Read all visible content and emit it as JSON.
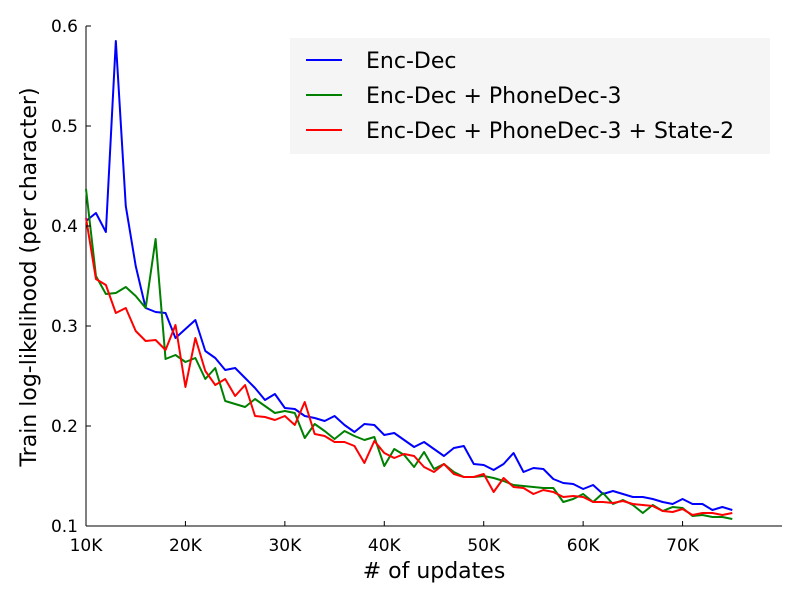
{
  "chart_data": {
    "type": "line",
    "xlabel": "# of updates",
    "ylabel": "Train log-likelihood (per character)",
    "xlim": [
      10000,
      80000
    ],
    "ylim": [
      0.1,
      0.6
    ],
    "x_ticks": [
      {
        "value": 10000,
        "label": "10K"
      },
      {
        "value": 20000,
        "label": "20K"
      },
      {
        "value": 30000,
        "label": "30K"
      },
      {
        "value": 40000,
        "label": "40K"
      },
      {
        "value": 50000,
        "label": "50K"
      },
      {
        "value": 60000,
        "label": "60K"
      },
      {
        "value": 70000,
        "label": "70K"
      }
    ],
    "y_ticks": [
      {
        "value": 0.1,
        "label": "0.1"
      },
      {
        "value": 0.2,
        "label": "0.2"
      },
      {
        "value": 0.3,
        "label": "0.3"
      },
      {
        "value": 0.4,
        "label": "0.4"
      },
      {
        "value": 0.5,
        "label": "0.5"
      },
      {
        "value": 0.6,
        "label": "0.6"
      }
    ],
    "grid": false,
    "legend_position": "top-right",
    "x": [
      10000,
      11000,
      12000,
      13000,
      14000,
      15000,
      16000,
      17000,
      18000,
      19000,
      20000,
      21000,
      22000,
      23000,
      24000,
      25000,
      26000,
      27000,
      28000,
      29000,
      30000,
      31000,
      32000,
      33000,
      34000,
      35000,
      36000,
      37000,
      38000,
      39000,
      40000,
      41000,
      42000,
      43000,
      44000,
      45000,
      46000,
      47000,
      48000,
      49000,
      50000,
      51000,
      52000,
      53000,
      54000,
      55000,
      56000,
      57000,
      58000,
      59000,
      60000,
      61000,
      62000,
      63000,
      64000,
      65000,
      66000,
      67000,
      68000,
      69000,
      70000,
      71000,
      72000,
      73000,
      74000,
      75000
    ],
    "series": [
      {
        "name": "Enc-Dec",
        "color": "#0000ff",
        "values": [
          0.405,
          0.413,
          0.394,
          0.585,
          0.42,
          0.36,
          0.318,
          0.314,
          0.313,
          0.288,
          0.297,
          0.306,
          0.275,
          0.268,
          0.256,
          0.258,
          0.248,
          0.238,
          0.226,
          0.232,
          0.218,
          0.217,
          0.21,
          0.208,
          0.205,
          0.21,
          0.201,
          0.194,
          0.202,
          0.201,
          0.191,
          0.193,
          0.186,
          0.179,
          0.184,
          0.177,
          0.17,
          0.178,
          0.18,
          0.162,
          0.161,
          0.156,
          0.162,
          0.173,
          0.154,
          0.158,
          0.157,
          0.147,
          0.143,
          0.142,
          0.137,
          0.141,
          0.132,
          0.135,
          0.132,
          0.129,
          0.129,
          0.127,
          0.124,
          0.122,
          0.127,
          0.122,
          0.122,
          0.116,
          0.119,
          0.116
        ]
      },
      {
        "name": "Enc-Dec + PhoneDec-3",
        "color": "#008000",
        "values": [
          0.437,
          0.35,
          0.332,
          0.333,
          0.339,
          0.33,
          0.318,
          0.387,
          0.267,
          0.271,
          0.264,
          0.268,
          0.247,
          0.258,
          0.225,
          0.222,
          0.219,
          0.227,
          0.22,
          0.213,
          0.215,
          0.213,
          0.188,
          0.202,
          0.195,
          0.187,
          0.195,
          0.19,
          0.186,
          0.189,
          0.16,
          0.177,
          0.171,
          0.159,
          0.174,
          0.157,
          0.162,
          0.154,
          0.149,
          0.149,
          0.15,
          0.148,
          0.145,
          0.141,
          0.14,
          0.139,
          0.138,
          0.138,
          0.124,
          0.127,
          0.132,
          0.124,
          0.133,
          0.122,
          0.126,
          0.121,
          0.113,
          0.121,
          0.115,
          0.119,
          0.118,
          0.11,
          0.111,
          0.109,
          0.109,
          0.107
        ]
      },
      {
        "name": "Enc-Dec + PhoneDec-3 + State-2",
        "color": "#ff0000",
        "values": [
          0.408,
          0.347,
          0.341,
          0.313,
          0.318,
          0.295,
          0.285,
          0.286,
          0.276,
          0.301,
          0.239,
          0.288,
          0.255,
          0.241,
          0.247,
          0.23,
          0.241,
          0.21,
          0.209,
          0.206,
          0.21,
          0.201,
          0.224,
          0.192,
          0.19,
          0.184,
          0.184,
          0.18,
          0.163,
          0.185,
          0.173,
          0.168,
          0.172,
          0.17,
          0.159,
          0.154,
          0.162,
          0.152,
          0.149,
          0.149,
          0.152,
          0.134,
          0.148,
          0.139,
          0.138,
          0.132,
          0.136,
          0.134,
          0.129,
          0.13,
          0.129,
          0.124,
          0.124,
          0.123,
          0.125,
          0.122,
          0.121,
          0.12,
          0.115,
          0.114,
          0.117,
          0.111,
          0.113,
          0.113,
          0.111,
          0.113
        ]
      }
    ]
  }
}
